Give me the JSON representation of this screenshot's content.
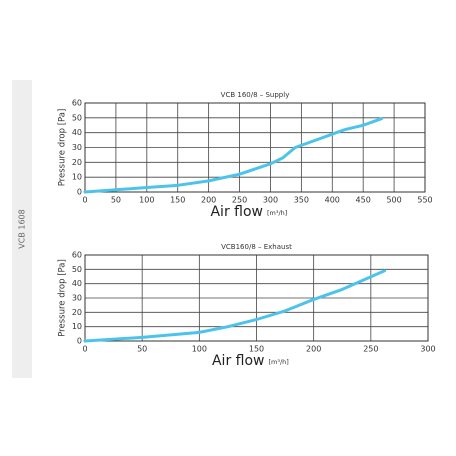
{
  "sidebar_label": "VCB 1608",
  "chart_data": [
    {
      "type": "line",
      "title": "VCB 160/8 – Supply",
      "xlabel": "Air flow",
      "xlabel_unit": "[m³/h]",
      "ylabel": "Pressure drop [Pa]",
      "x": [
        0,
        50,
        100,
        150,
        200,
        250,
        300,
        320,
        340,
        380,
        420,
        450,
        480
      ],
      "series": [
        {
          "name": "Supply",
          "color": "#4cc3ea",
          "values": [
            0,
            1.5,
            3,
            4.5,
            7.5,
            12,
            19,
            23,
            30,
            36,
            42,
            45,
            49.5
          ]
        }
      ],
      "xlim": [
        0,
        550
      ],
      "xticks": [
        0,
        50,
        100,
        150,
        200,
        250,
        300,
        350,
        400,
        450,
        500,
        550
      ],
      "ylim": [
        0,
        60
      ],
      "yticks": [
        0,
        10,
        20,
        30,
        40,
        50,
        60
      ],
      "grid": true
    },
    {
      "type": "line",
      "title": "VCB160/8 – Exhaust",
      "xlabel": "Air flow",
      "xlabel_unit": "[m³/h]",
      "ylabel": "Pressure drop [Pa]",
      "x": [
        0,
        50,
        100,
        125,
        150,
        175,
        200,
        225,
        262
      ],
      "series": [
        {
          "name": "Exhaust",
          "color": "#4cc3ea",
          "values": [
            0,
            2.5,
            6,
            10,
            15,
            21,
            29,
            36,
            49
          ]
        }
      ],
      "xlim": [
        0,
        300
      ],
      "xticks": [
        0,
        50,
        100,
        150,
        200,
        250,
        300
      ],
      "ylim": [
        0,
        60
      ],
      "yticks": [
        0,
        10,
        20,
        30,
        40,
        50,
        60
      ],
      "grid": true
    }
  ]
}
